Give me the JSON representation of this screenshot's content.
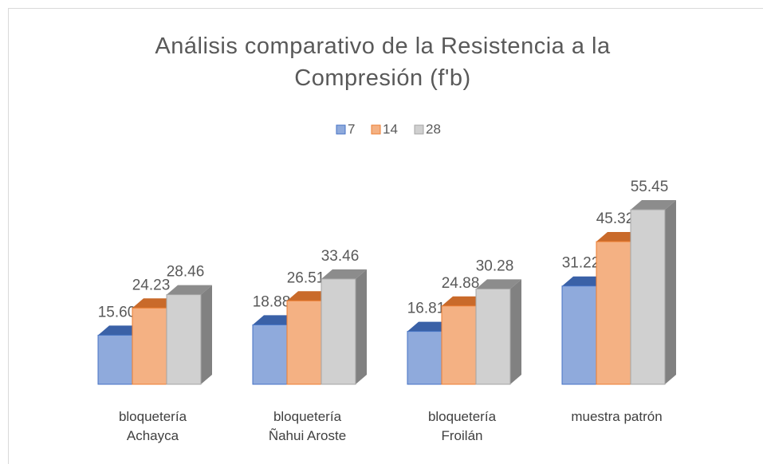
{
  "chart_data": {
    "type": "bar3d",
    "title": "Análisis comparativo de la Resistencia a la Compresión (f'b)",
    "categories": [
      "bloquetería Achayca",
      "bloquetería Ñahui Aroste",
      "bloquetería Froilán",
      "muestra patrón"
    ],
    "series": [
      {
        "name": "7",
        "color": "#8faadc",
        "edge": "#4472c4",
        "values": [
          15.6,
          18.88,
          16.81,
          31.22
        ],
        "value_labels": [
          "15.60",
          "18.88",
          "16.81",
          "31.22"
        ]
      },
      {
        "name": "14",
        "color": "#f4b183",
        "edge": "#ed7d31",
        "values": [
          24.23,
          26.51,
          24.88,
          45.32
        ],
        "value_labels": [
          "24.23",
          "26.51",
          "24.88",
          "45.32"
        ]
      },
      {
        "name": "28",
        "color": "#d0d0d0",
        "edge": "#a5a5a5",
        "values": [
          28.46,
          33.46,
          30.28,
          55.45
        ],
        "value_labels": [
          "28.46",
          "33.46",
          "30.28",
          "55.45"
        ]
      }
    ],
    "legend": "top"
  }
}
